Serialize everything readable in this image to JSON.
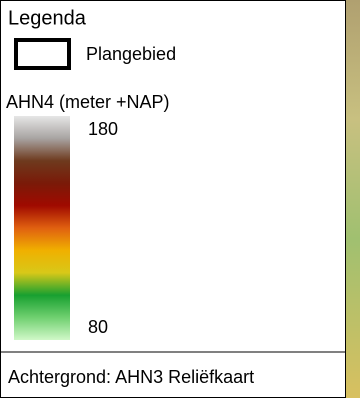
{
  "legend": {
    "title": "Legenda",
    "items": [
      {
        "label": "Plangebied"
      }
    ],
    "colorbar": {
      "label": "AHN4 (meter +NAP)",
      "max": 180,
      "min": 80,
      "colors": [
        "#e6e6e6",
        "#a8a4a2",
        "#6e3a1e",
        "#7a1a08",
        "#a00a00",
        "#e06010",
        "#f0b000",
        "#d8c818",
        "#18a030",
        "#70d070",
        "#d0f8c8"
      ]
    },
    "footer": "Achtergrond: AHN3 Reliëfkaart"
  }
}
